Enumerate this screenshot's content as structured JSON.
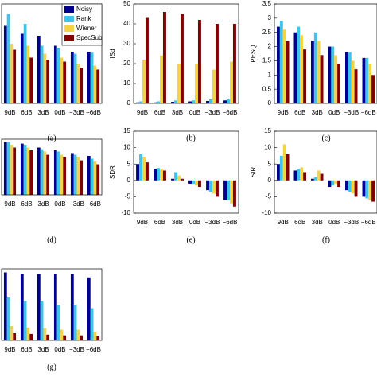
{
  "chart_data": [
    {
      "type": "bar",
      "caption": "(a)",
      "legend": true,
      "ylim": [
        0,
        1
      ],
      "categories": [
        "9dB",
        "6dB",
        "3dB",
        "0dB",
        "−3dB",
        "−6dB"
      ],
      "series": [
        {
          "name": "Noisy",
          "color": "#00008f",
          "values": [
            0.78,
            0.7,
            0.68,
            0.58,
            0.52,
            0.52
          ]
        },
        {
          "name": "Rank",
          "color": "#3fc4ee",
          "values": [
            0.9,
            0.8,
            0.58,
            0.56,
            0.5,
            0.51
          ]
        },
        {
          "name": "Wiener",
          "color": "#f2d34a",
          "values": [
            0.6,
            0.58,
            0.5,
            0.46,
            0.4,
            0.38
          ]
        },
        {
          "name": "SpecSub",
          "color": "#800000",
          "values": [
            0.54,
            0.46,
            0.44,
            0.42,
            0.36,
            0.34
          ]
        }
      ]
    },
    {
      "type": "bar",
      "caption": "(b)",
      "ylabel": "ISd",
      "ylim": [
        0,
        50
      ],
      "yticks": [
        0,
        10,
        20,
        30,
        40,
        50
      ],
      "categories": [
        "9dB",
        "6dB",
        "3dB",
        "0dB",
        "−3dB",
        "−6dB"
      ],
      "series": [
        {
          "color": "#00008f",
          "values": [
            0.5,
            0.5,
            0.8,
            1,
            1.2,
            1.5
          ]
        },
        {
          "color": "#3fc4ee",
          "values": [
            1,
            1,
            1.5,
            1.5,
            2,
            2
          ]
        },
        {
          "color": "#f2d34a",
          "values": [
            22,
            24,
            20,
            20,
            17,
            21
          ]
        },
        {
          "color": "#800000",
          "values": [
            43,
            46,
            45,
            42,
            40,
            40
          ]
        }
      ]
    },
    {
      "type": "bar",
      "caption": "(c)",
      "ylabel": "PESQ",
      "ylim": [
        0,
        3.5
      ],
      "yticks": [
        0,
        0.5,
        1,
        1.5,
        2,
        2.5,
        3,
        3.5
      ],
      "categories": [
        "9dB",
        "6dB",
        "3dB",
        "0dB",
        "−3dB",
        "−6dB"
      ],
      "series": [
        {
          "color": "#00008f",
          "values": [
            2.7,
            2.5,
            2.2,
            2.0,
            1.8,
            1.6
          ]
        },
        {
          "color": "#3fc4ee",
          "values": [
            2.9,
            2.7,
            2.5,
            2.0,
            1.8,
            1.6
          ]
        },
        {
          "color": "#f2d34a",
          "values": [
            2.6,
            2.4,
            2.2,
            1.7,
            1.5,
            1.4
          ]
        },
        {
          "color": "#800000",
          "values": [
            2.2,
            1.9,
            1.7,
            1.4,
            1.2,
            1.0
          ]
        }
      ]
    },
    {
      "type": "bar",
      "caption": "(d)",
      "ylim": [
        0,
        1
      ],
      "categories": [
        "9dB",
        "6dB",
        "3dB",
        "0dB",
        "−3dB",
        "−6dB"
      ],
      "series": [
        {
          "color": "#00008f",
          "values": [
            0.95,
            0.92,
            0.85,
            0.8,
            0.75,
            0.7
          ]
        },
        {
          "color": "#3fc4ee",
          "values": [
            0.95,
            0.9,
            0.82,
            0.78,
            0.72,
            0.65
          ]
        },
        {
          "color": "#f2d34a",
          "values": [
            0.9,
            0.85,
            0.78,
            0.72,
            0.68,
            0.6
          ]
        },
        {
          "color": "#800000",
          "values": [
            0.85,
            0.8,
            0.72,
            0.68,
            0.62,
            0.55
          ]
        }
      ]
    },
    {
      "type": "bar",
      "caption": "(e)",
      "ylabel": "SDR",
      "ylim": [
        -10,
        15
      ],
      "yticks": [
        -10,
        -5,
        0,
        5,
        10,
        15
      ],
      "categories": [
        "9dB",
        "6dB",
        "3dB",
        "0dB",
        "−3dB",
        "−6dB"
      ],
      "series": [
        {
          "color": "#00008f",
          "values": [
            5,
            3.5,
            0.5,
            -1,
            -3,
            -6
          ]
        },
        {
          "color": "#3fc4ee",
          "values": [
            8,
            3.8,
            2.5,
            -1,
            -3.5,
            -6
          ]
        },
        {
          "color": "#f2d34a",
          "values": [
            7,
            3.5,
            1.5,
            -1.5,
            -4,
            -7
          ]
        },
        {
          "color": "#800000",
          "values": [
            5.5,
            3,
            0.5,
            -2,
            -5,
            -8
          ]
        }
      ]
    },
    {
      "type": "bar",
      "caption": "(f)",
      "ylabel": "SIR",
      "ylim": [
        -10,
        15
      ],
      "yticks": [
        -10,
        -5,
        0,
        5,
        10,
        15
      ],
      "categories": [
        "9dB",
        "6dB",
        "3dB",
        "0dB",
        "−3dB",
        "−6dB"
      ],
      "series": [
        {
          "color": "#00008f",
          "values": [
            5,
            3,
            0.5,
            -2,
            -3,
            -5
          ]
        },
        {
          "color": "#3fc4ee",
          "values": [
            7.5,
            3.5,
            1,
            -1.5,
            -3.5,
            -5.5
          ]
        },
        {
          "color": "#f2d34a",
          "values": [
            11,
            4,
            3,
            -1,
            -4,
            -6
          ]
        },
        {
          "color": "#800000",
          "values": [
            8,
            2.5,
            2,
            -2,
            -5,
            -6.5
          ]
        }
      ]
    },
    {
      "type": "bar",
      "caption": "(g)",
      "ylim": [
        0,
        1
      ],
      "categories": [
        "9dB",
        "6dB",
        "3dB",
        "0dB",
        "−3dB",
        "−6dB"
      ],
      "series": [
        {
          "color": "#00008f",
          "values": [
            0.95,
            0.93,
            0.93,
            0.93,
            0.93,
            0.88
          ]
        },
        {
          "color": "#3fc4ee",
          "values": [
            0.6,
            0.55,
            0.55,
            0.5,
            0.5,
            0.45
          ]
        },
        {
          "color": "#f2d34a",
          "values": [
            0.2,
            0.18,
            0.17,
            0.15,
            0.15,
            0.12
          ]
        },
        {
          "color": "#800000",
          "values": [
            0.1,
            0.09,
            0.08,
            0.07,
            0.07,
            0.06
          ]
        }
      ]
    }
  ]
}
